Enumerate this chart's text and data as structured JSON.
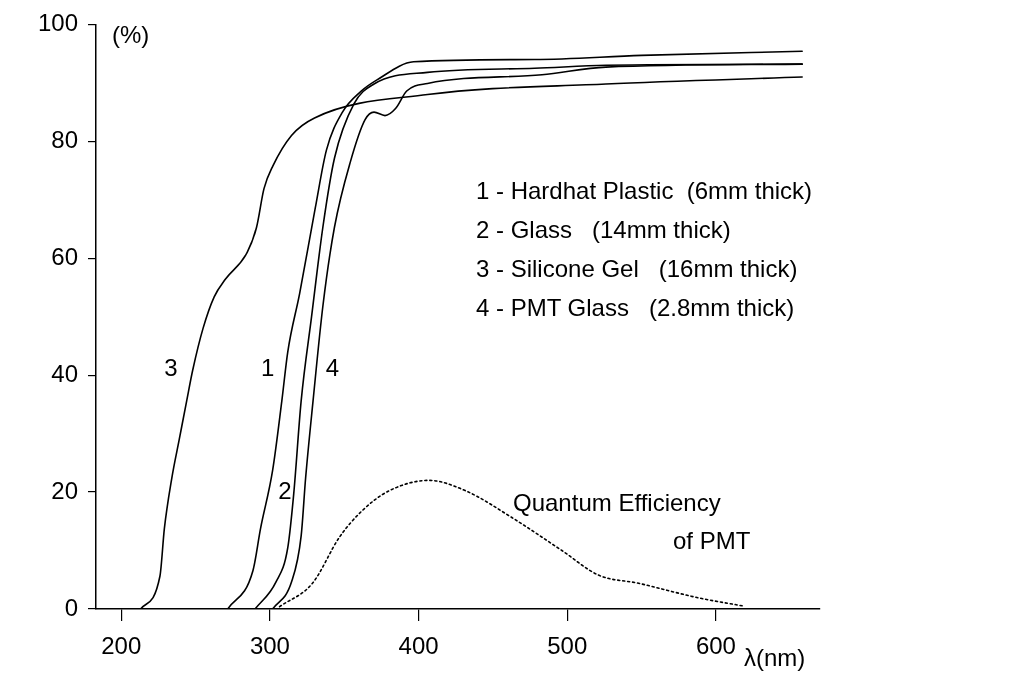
{
  "chart_data": {
    "type": "line",
    "xlabel": "λ(nm)",
    "ylabel": "(%)",
    "xlim": [
      183,
      670
    ],
    "xticks": [
      200,
      300,
      400,
      500,
      600
    ],
    "ylim": [
      0,
      100
    ],
    "yticks": [
      0,
      20,
      40,
      60,
      80,
      100
    ],
    "grid": false,
    "legend": false,
    "marker": "none",
    "series": [
      {
        "name": "1",
        "color": "#000000",
        "line_style": "solid",
        "x": [
          271.6,
          288.6,
          293.7,
          301.8,
          308,
          312,
          320,
          330.5,
          338,
          348.8,
          361,
          372,
          396.6,
          478,
          550,
          658
        ],
        "values": [
          0,
          6.6,
          13.8,
          23.7,
          35.6,
          44,
          54,
          68.6,
          78.5,
          85,
          88.5,
          90.5,
          93.6,
          94,
          94.7,
          95.4
        ]
      },
      {
        "name": "2",
        "color": "#000000",
        "line_style": "solid",
        "x": [
          290,
          304,
          312,
          316,
          321,
          328,
          335.6,
          343.4,
          356.5,
          370,
          406,
          478,
          526,
          658
        ],
        "values": [
          0,
          4.6,
          10.5,
          19.7,
          35.6,
          50,
          65.3,
          77.1,
          86.4,
          89.8,
          91.8,
          92.5,
          93,
          93.2
        ]
      },
      {
        "name": "3",
        "color": "#000000",
        "line_style": "solid",
        "x": [
          213,
          226,
          229,
          234,
          239,
          244,
          248,
          255,
          262.5,
          270,
          284.7,
          291,
          296,
          302,
          314.5,
          330,
          406,
          526,
          658
        ],
        "values": [
          0,
          5.6,
          13.8,
          22.4,
          29,
          35.6,
          40.8,
          48,
          53.4,
          56.4,
          61,
          65.3,
          71.9,
          75.8,
          81,
          84,
          88,
          89.8,
          91
        ]
      },
      {
        "name": "4",
        "color": "#000000",
        "line_style": "solid",
        "x": [
          301.8,
          314.5,
          321,
          324,
          329,
          335.7,
          343.4,
          354,
          364,
          370,
          377.4,
          384.5,
          392,
          406,
          483,
          526,
          658
        ],
        "values": [
          0,
          4.6,
          12.5,
          22.4,
          35.6,
          52,
          65.3,
          76.4,
          83.7,
          85,
          84.4,
          85.6,
          88.6,
          89.9,
          91.4,
          92.7,
          93.2
        ]
      },
      {
        "color": "#000000",
        "line_style": "dotted",
        "x": [
          306.5,
          328.6,
          346.8,
          362,
          380,
          407,
          431.8,
          463,
          496.4,
          521,
          548,
          588.4,
          618.6
        ],
        "values": [
          0.4,
          4.4,
          12.3,
          16.8,
          20.2,
          22,
          20.2,
          15.6,
          10,
          5.8,
          4.4,
          1.9,
          0.5
        ]
      }
    ],
    "annotations": [
      "1 - Hardhat Plastic  (6mm thick)",
      "2 - Glass   (14mm thick)",
      "3 - Silicone Gel   (16mm thick)",
      "4 - PMT Glass   (2.8mm thick)",
      "Quantum Efficiency\nof PMT"
    ]
  }
}
